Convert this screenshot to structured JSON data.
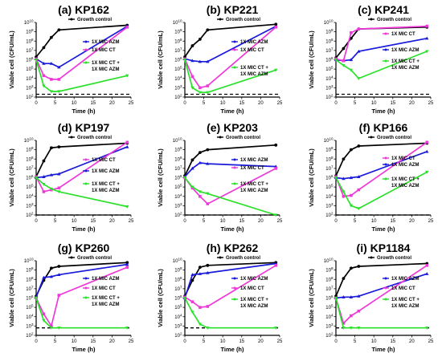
{
  "chart_data": [
    {
      "type": "line",
      "title": "(a) KP162",
      "xlabel": "Time (h)",
      "ylabel": "Viable cell (CFU/mL)",
      "xlim": [
        0,
        25
      ],
      "ylim": [
        2,
        10
      ],
      "y_scale": "log10",
      "xticks": [
        "0",
        "5",
        "10",
        "15",
        "20",
        "25"
      ],
      "yticks": [
        "10^2",
        "10^3",
        "10^4",
        "10^5",
        "10^6",
        "10^7",
        "10^8",
        "10^9",
        "10^10"
      ],
      "detection_limit": 2.3,
      "series": [
        {
          "name": "Growth control",
          "color": "#000000",
          "x": [
            0,
            2,
            4,
            6,
            24
          ],
          "y": [
            6.3,
            7.3,
            8.4,
            9.2,
            9.7
          ]
        },
        {
          "name": "1X MIC AZM",
          "color": "#1a1adb",
          "x": [
            0,
            2,
            4,
            6,
            24
          ],
          "y": [
            6.1,
            5.6,
            5.6,
            5.2,
            9.6
          ]
        },
        {
          "name": "1X MIC CT",
          "color": "#ee38d8",
          "x": [
            0,
            2,
            4,
            6,
            24
          ],
          "y": [
            6.1,
            4.3,
            3.9,
            3.9,
            9.5
          ]
        },
        {
          "name": "1X MIC CT + 1X MIC AZM",
          "color": "#2ae12a",
          "x": [
            0,
            2,
            4,
            6,
            24
          ],
          "y": [
            6.0,
            3.2,
            2.6,
            2.6,
            4.3
          ]
        }
      ],
      "legend": [
        {
          "label": "Growth control",
          "series": 0
        },
        {
          "label": "1X MIC AZM",
          "series": 1
        },
        {
          "label": "1X MIC CT",
          "series": 2
        },
        {
          "label": "1X MIC CT +",
          "series": 3
        },
        {
          "label": "1X MIC AZM",
          "series": -1
        }
      ]
    },
    {
      "type": "line",
      "title": "(b) KP221",
      "xlabel": "Time (h)",
      "ylabel": "Viable cell (CFU/mL)",
      "xlim": [
        0,
        25
      ],
      "ylim": [
        2,
        10
      ],
      "y_scale": "log10",
      "xticks": [
        "0",
        "5",
        "10",
        "15",
        "20",
        "25"
      ],
      "yticks": [
        "10^2",
        "10^3",
        "10^4",
        "10^5",
        "10^6",
        "10^7",
        "10^8",
        "10^9",
        "10^10"
      ],
      "detection_limit": 2.3,
      "series": [
        {
          "name": "Growth control",
          "color": "#000000",
          "x": [
            0,
            2,
            4,
            6,
            24
          ],
          "y": [
            6.3,
            7.5,
            8.2,
            9.2,
            9.8
          ]
        },
        {
          "name": "1X MIC AZM",
          "color": "#1a1adb",
          "x": [
            0,
            2,
            4,
            6,
            24
          ],
          "y": [
            6.1,
            5.9,
            5.8,
            5.8,
            9.6
          ]
        },
        {
          "name": "1X MIC CT",
          "color": "#ee38d8",
          "x": [
            0,
            2,
            4,
            6,
            24
          ],
          "y": [
            6.1,
            4.2,
            3.0,
            3.2,
            9.5
          ]
        },
        {
          "name": "1X MIC CT + 1X MIC AZM",
          "color": "#2ae12a",
          "x": [
            0,
            2,
            4,
            6,
            24
          ],
          "y": [
            6.0,
            3.0,
            2.5,
            2.5,
            4.9
          ]
        }
      ],
      "legend": [
        {
          "label": "Growth control",
          "series": 0
        },
        {
          "label": "1X MIC AZM",
          "series": 1
        },
        {
          "label": "1X MIC CT",
          "series": 2
        },
        {
          "label": "1X MIC CT +",
          "series": 3
        },
        {
          "label": "1X MIC AZM",
          "series": -1
        }
      ]
    },
    {
      "type": "line",
      "title": "(c) KP241",
      "xlabel": "Time (h)",
      "ylabel": "Viable cell (CFU/mL)",
      "xlim": [
        0,
        25
      ],
      "ylim": [
        2,
        10
      ],
      "y_scale": "log10",
      "xticks": [
        "0",
        "5",
        "10",
        "15",
        "20",
        "25"
      ],
      "yticks": [
        "10^2",
        "10^3",
        "10^4",
        "10^5",
        "10^6",
        "10^7",
        "10^8",
        "10^9",
        "10^10"
      ],
      "detection_limit": 2.3,
      "series": [
        {
          "name": "Growth control",
          "color": "#000000",
          "x": [
            0,
            2,
            4,
            6,
            24
          ],
          "y": [
            6.2,
            7.2,
            8.3,
            9.3,
            9.5
          ]
        },
        {
          "name": "1X MIC AZM",
          "color": "#1a1adb",
          "x": [
            0,
            2,
            4,
            6,
            24
          ],
          "y": [
            6.0,
            5.9,
            6.0,
            6.9,
            8.3
          ]
        },
        {
          "name": "1X MIC CT",
          "color": "#ee38d8",
          "x": [
            0,
            2,
            4,
            6,
            24
          ],
          "y": [
            6.1,
            5.9,
            8.9,
            9.3,
            9.6
          ]
        },
        {
          "name": "1X MIC CT + 1X MIC AZM",
          "color": "#2ae12a",
          "x": [
            0,
            2,
            4,
            6,
            24
          ],
          "y": [
            6.0,
            5.4,
            4.9,
            4.0,
            6.9
          ]
        }
      ],
      "legend": [
        {
          "label": "Growth control",
          "series": 0
        },
        {
          "label": "1X MIC CT",
          "series": 2
        },
        {
          "label": "1X MIC AZM",
          "series": 1
        },
        {
          "label": "1X MIC CT +",
          "series": 3
        },
        {
          "label": "1X MIC AZM",
          "series": -1
        }
      ]
    },
    {
      "type": "line",
      "title": "(d) KP197",
      "xlabel": "Time (h)",
      "ylabel": "Viable cell (CFU/mL)",
      "xlim": [
        0,
        25
      ],
      "ylim": [
        2,
        10
      ],
      "y_scale": "log10",
      "xticks": [
        "0",
        "5",
        "10",
        "15",
        "20",
        "25"
      ],
      "yticks": [
        "10^2",
        "10^3",
        "10^4",
        "10^5",
        "10^6",
        "10^7",
        "10^8",
        "10^9",
        "10^10"
      ],
      "detection_limit": 2.0,
      "series": [
        {
          "name": "Growth control",
          "color": "#000000",
          "x": [
            0,
            2,
            4,
            6,
            24
          ],
          "y": [
            6.1,
            7.8,
            9.2,
            9.3,
            9.7
          ]
        },
        {
          "name": "1X MIC AZM",
          "color": "#1a1adb",
          "x": [
            0,
            2,
            4,
            6,
            24
          ],
          "y": [
            6.0,
            6.1,
            6.3,
            6.4,
            9.3
          ]
        },
        {
          "name": "1X MIC CT",
          "color": "#ee38d8",
          "x": [
            0,
            2,
            4,
            6,
            24
          ],
          "y": [
            6.1,
            4.5,
            4.7,
            4.9,
            9.8
          ]
        },
        {
          "name": "1X MIC CT + 1X MIC AZM",
          "color": "#2ae12a",
          "x": [
            0,
            2,
            4,
            6,
            24
          ],
          "y": [
            6.0,
            5.3,
            4.8,
            4.5,
            2.9
          ]
        }
      ],
      "legend": [
        {
          "label": "Growth control",
          "series": 0
        },
        {
          "label": "1X MIC CT",
          "series": 2
        },
        {
          "label": "1X MIC AZM",
          "series": 1
        },
        {
          "label": "1X MIC CT +",
          "series": 3
        },
        {
          "label": "1X MIC AZM",
          "series": -1
        }
      ]
    },
    {
      "type": "line",
      "title": "(e) KP203",
      "xlabel": "Time (h)",
      "ylabel": "Viable cell (CFU/mL)",
      "xlim": [
        0,
        25
      ],
      "ylim": [
        2,
        10
      ],
      "y_scale": "log10",
      "xticks": [
        "0",
        "5",
        "10",
        "15",
        "20",
        "25"
      ],
      "yticks": [
        "10^2",
        "10^3",
        "10^4",
        "10^5",
        "10^6",
        "10^7",
        "10^8",
        "10^9",
        "10^10"
      ],
      "detection_limit": 2.0,
      "series": [
        {
          "name": "Growth control",
          "color": "#000000",
          "x": [
            0,
            2,
            4,
            6,
            24
          ],
          "y": [
            6.2,
            7.9,
            8.7,
            9.0,
            9.5
          ]
        },
        {
          "name": "1X MIC AZM",
          "color": "#1a1adb",
          "x": [
            0,
            2,
            4,
            6,
            24
          ],
          "y": [
            6.1,
            7.0,
            7.6,
            7.5,
            7.2
          ]
        },
        {
          "name": "1X MIC CT",
          "color": "#ee38d8",
          "x": [
            0,
            2,
            4,
            6,
            24
          ],
          "y": [
            6.0,
            4.9,
            4.0,
            3.2,
            7.0
          ]
        },
        {
          "name": "1X MIC CT + 1X MIC AZM",
          "color": "#2ae12a",
          "x": [
            0,
            2,
            4,
            6,
            24
          ],
          "y": [
            6.0,
            5.0,
            4.5,
            4.3,
            2.0
          ]
        }
      ],
      "legend": [
        {
          "label": "Growth control",
          "series": 0
        },
        {
          "label": "1X MIC AZM",
          "series": 1
        },
        {
          "label": "1X MIC CT",
          "series": 2
        },
        {
          "label": "1X MIC CT +",
          "series": 3
        },
        {
          "label": "1X MIC AZM",
          "series": -1
        }
      ]
    },
    {
      "type": "line",
      "title": "(f) KP166",
      "xlabel": "Time (h)",
      "ylabel": "Viable cell (CFU/mL)",
      "xlim": [
        0,
        25
      ],
      "ylim": [
        2,
        10
      ],
      "y_scale": "log10",
      "xticks": [
        "0",
        "5",
        "10",
        "15",
        "20",
        "25"
      ],
      "yticks": [
        "10^2",
        "10^3",
        "10^4",
        "10^5",
        "10^6",
        "10^7",
        "10^8",
        "10^9",
        "10^10"
      ],
      "detection_limit": 2.0,
      "series": [
        {
          "name": "Growth control",
          "color": "#000000",
          "x": [
            0,
            2,
            4,
            6,
            24
          ],
          "y": [
            6.2,
            8.0,
            9.0,
            9.4,
            9.7
          ]
        },
        {
          "name": "1X MIC AZM",
          "color": "#1a1adb",
          "x": [
            0,
            2,
            4,
            6,
            24
          ],
          "y": [
            6.0,
            5.9,
            6.0,
            6.1,
            8.8
          ]
        },
        {
          "name": "1X MIC CT",
          "color": "#ee38d8",
          "x": [
            0,
            2,
            4,
            6,
            24
          ],
          "y": [
            6.1,
            4.0,
            4.1,
            4.7,
            9.8
          ]
        },
        {
          "name": "1X MIC CT + 1X MIC AZM",
          "color": "#2ae12a",
          "x": [
            0,
            2,
            4,
            6,
            24
          ],
          "y": [
            6.0,
            4.5,
            3.0,
            2.7,
            6.6
          ]
        }
      ],
      "legend": [
        {
          "label": "Growth control",
          "series": 0
        },
        {
          "label": "1X MIC CT",
          "series": 2
        },
        {
          "label": "1X MIC AZM",
          "series": 1
        },
        {
          "label": "1X MIC CT +",
          "series": 3
        },
        {
          "label": "1X MIC AZM",
          "series": -1
        }
      ]
    },
    {
      "type": "line",
      "title": "(g) KP260",
      "xlabel": "Time (h)",
      "ylabel": "Viable cell (CFU/mL)",
      "xlim": [
        0,
        25
      ],
      "ylim": [
        2,
        10
      ],
      "y_scale": "log10",
      "xticks": [
        "0",
        "5",
        "10",
        "15",
        "20",
        "25"
      ],
      "yticks": [
        "10^2",
        "10^3",
        "10^4",
        "10^5",
        "10^6",
        "10^7",
        "10^8",
        "10^9",
        "10^10"
      ],
      "detection_limit": 2.8,
      "series": [
        {
          "name": "Growth control",
          "color": "#000000",
          "x": [
            0,
            2,
            4,
            6,
            24
          ],
          "y": [
            6.2,
            7.9,
            9.2,
            9.4,
            9.8
          ]
        },
        {
          "name": "1X MIC AZM",
          "color": "#1a1adb",
          "x": [
            0,
            2,
            4,
            6,
            24
          ],
          "y": [
            6.1,
            8.2,
            8.3,
            8.5,
            9.6
          ]
        },
        {
          "name": "1X MIC CT",
          "color": "#ee38d8",
          "x": [
            0,
            2,
            4,
            6,
            24
          ],
          "y": [
            6.0,
            4.3,
            3.0,
            6.3,
            9.3
          ]
        },
        {
          "name": "1X MIC CT + 1X MIC AZM",
          "color": "#2ae12a",
          "x": [
            0,
            2,
            4,
            6,
            24
          ],
          "y": [
            6.0,
            3.6,
            2.8,
            2.8,
            2.8
          ]
        }
      ],
      "legend": [
        {
          "label": "Growth control",
          "series": 0
        },
        {
          "label": "1X MIC AZM",
          "series": 1
        },
        {
          "label": "1X MIC CT",
          "series": 2
        },
        {
          "label": "1X MIC CT +",
          "series": 3
        },
        {
          "label": "1X MIC AZM",
          "series": -1
        }
      ]
    },
    {
      "type": "line",
      "title": "(h) KP262",
      "xlabel": "Time (h)",
      "ylabel": "Viable cell (CFU/mL)",
      "xlim": [
        0,
        25
      ],
      "ylim": [
        2,
        10
      ],
      "y_scale": "log10",
      "xticks": [
        "0",
        "5",
        "10",
        "15",
        "20",
        "25"
      ],
      "yticks": [
        "10^2",
        "10^3",
        "10^4",
        "10^5",
        "10^6",
        "10^7",
        "10^8",
        "10^9",
        "10^10"
      ],
      "detection_limit": 2.8,
      "series": [
        {
          "name": "Growth control",
          "color": "#000000",
          "x": [
            0,
            2,
            4,
            6,
            24
          ],
          "y": [
            6.2,
            7.9,
            9.3,
            9.5,
            9.8
          ]
        },
        {
          "name": "1X MIC AZM",
          "color": "#1a1adb",
          "x": [
            0,
            2,
            4,
            6,
            24
          ],
          "y": [
            6.0,
            8.5,
            8.6,
            8.7,
            9.7
          ]
        },
        {
          "name": "1X MIC CT",
          "color": "#ee38d8",
          "x": [
            0,
            2,
            4,
            6,
            24
          ],
          "y": [
            6.1,
            5.6,
            5.0,
            5.1,
            9.5
          ]
        },
        {
          "name": "1X MIC CT + 1X MIC AZM",
          "color": "#2ae12a",
          "x": [
            0,
            2,
            4,
            6,
            24
          ],
          "y": [
            6.0,
            4.5,
            3.2,
            2.8,
            2.8
          ]
        }
      ],
      "legend": [
        {
          "label": "Growth control",
          "series": 0
        },
        {
          "label": "1X MIC AZM",
          "series": 1
        },
        {
          "label": "1X MIC CT",
          "series": 2
        },
        {
          "label": "1X MIC CT +",
          "series": 3
        },
        {
          "label": "1X MIC AZM",
          "series": -1
        }
      ]
    },
    {
      "type": "line",
      "title": "(i) KP1184",
      "xlabel": "Time (h)",
      "ylabel": "Viable cell (CFU/mL)",
      "xlim": [
        0,
        25
      ],
      "ylim": [
        2,
        10
      ],
      "y_scale": "log10",
      "xticks": [
        "0",
        "5",
        "10",
        "15",
        "20",
        "25"
      ],
      "yticks": [
        "10^2",
        "10^3",
        "10^4",
        "10^5",
        "10^6",
        "10^7",
        "10^8",
        "10^9",
        "10^10"
      ],
      "detection_limit": 2.8,
      "series": [
        {
          "name": "Growth control",
          "color": "#000000",
          "x": [
            0,
            2,
            4,
            6,
            24
          ],
          "y": [
            6.2,
            8.1,
            9.2,
            9.4,
            9.7
          ]
        },
        {
          "name": "1X MIC AZM",
          "color": "#1a1adb",
          "x": [
            0,
            2,
            4,
            6,
            24
          ],
          "y": [
            6.0,
            6.1,
            6.1,
            6.2,
            8.6
          ]
        },
        {
          "name": "1X MIC CT",
          "color": "#ee38d8",
          "x": [
            0,
            2,
            4,
            6,
            24
          ],
          "y": [
            6.0,
            3.3,
            4.1,
            4.6,
            9.5
          ]
        },
        {
          "name": "1X MIC CT + 1X MIC AZM",
          "color": "#2ae12a",
          "x": [
            0,
            2,
            4,
            6,
            24
          ],
          "y": [
            6.0,
            2.8,
            2.8,
            2.8,
            2.8
          ]
        }
      ],
      "legend": [
        {
          "label": "Growth control",
          "series": 0
        },
        {
          "label": "1X MIC AZM",
          "series": 1
        },
        {
          "label": "1X MIC CT",
          "series": 2
        },
        {
          "label": "1X MIC CT +",
          "series": 3
        },
        {
          "label": "1X MIC AZM",
          "series": -1
        }
      ]
    }
  ]
}
